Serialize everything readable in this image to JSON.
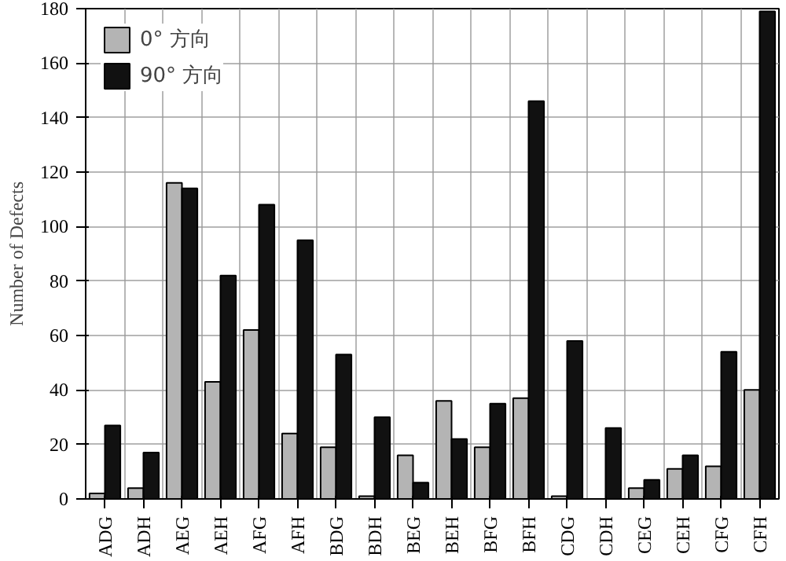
{
  "chart_data": {
    "type": "bar",
    "ylabel": "Number of Defects",
    "categories": [
      "ADG",
      "ADH",
      "AEG",
      "AEH",
      "AFG",
      "AFH",
      "BDG",
      "BDH",
      "BEG",
      "BEH",
      "BFG",
      "BFH",
      "CDG",
      "CDH",
      "CEG",
      "CEH",
      "CFG",
      "CFH"
    ],
    "series": [
      {
        "name": "0° 方向",
        "color": "#b4b4b4",
        "values": [
          2,
          4,
          116,
          43,
          62,
          24,
          19,
          1,
          16,
          36,
          19,
          37,
          1,
          null,
          4,
          11,
          12,
          40
        ]
      },
      {
        "name": "90° 方向",
        "color": "#111111",
        "values": [
          27,
          17,
          114,
          82,
          108,
          95,
          53,
          30,
          6,
          22,
          35,
          146,
          58,
          26,
          7,
          16,
          54,
          179
        ]
      }
    ],
    "ylim": [
      0,
      180
    ],
    "yticks": [
      0,
      20,
      40,
      60,
      80,
      100,
      120,
      140,
      160,
      180
    ],
    "grid": true,
    "legend": "top left"
  }
}
